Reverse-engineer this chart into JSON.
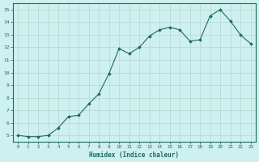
{
  "x": [
    0,
    1,
    2,
    3,
    4,
    5,
    6,
    7,
    8,
    9,
    10,
    11,
    12,
    13,
    14,
    15,
    16,
    17,
    18,
    19,
    20,
    21,
    22,
    23
  ],
  "y": [
    5.0,
    4.9,
    4.9,
    5.0,
    5.6,
    6.5,
    6.6,
    7.5,
    8.3,
    9.9,
    11.9,
    11.5,
    12.0,
    12.9,
    13.4,
    13.6,
    13.4,
    12.5,
    12.6,
    14.5,
    15.0,
    14.1,
    13.0,
    12.3
  ],
  "ylim": [
    5,
    15
  ],
  "xlim": [
    0,
    23
  ],
  "yticks": [
    5,
    6,
    7,
    8,
    9,
    10,
    11,
    12,
    13,
    14,
    15
  ],
  "xticks": [
    0,
    1,
    2,
    3,
    4,
    5,
    6,
    7,
    8,
    9,
    10,
    11,
    12,
    13,
    14,
    15,
    16,
    17,
    18,
    19,
    20,
    21,
    22,
    23
  ],
  "xlabel": "Humidex (Indice chaleur)",
  "line_color": "#1a6b5a",
  "marker": "D",
  "marker_size": 1.8,
  "bg_color": "#cef0ee",
  "grid_color": "#b8dbd8",
  "tick_color": "#1a6b5a",
  "label_color": "#1a6b5a",
  "font_family": "monospace"
}
